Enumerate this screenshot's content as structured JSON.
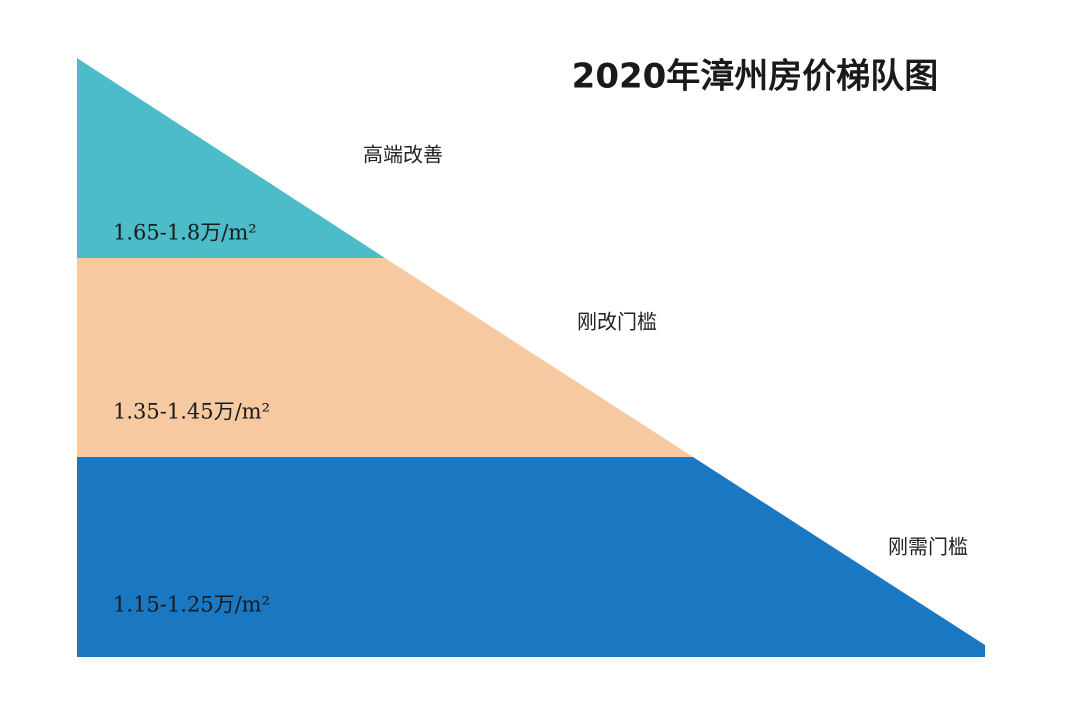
{
  "title": "2020年漳州房价梯队图",
  "tiers": [
    {
      "label": "高端改善",
      "price": "1.65-1.8万/m²"
    },
    {
      "label": "刚改门槛",
      "price": "1.35-1.45万/m²"
    },
    {
      "label": "刚需门槛",
      "price": "1.15-1.25万/m²"
    }
  ]
}
